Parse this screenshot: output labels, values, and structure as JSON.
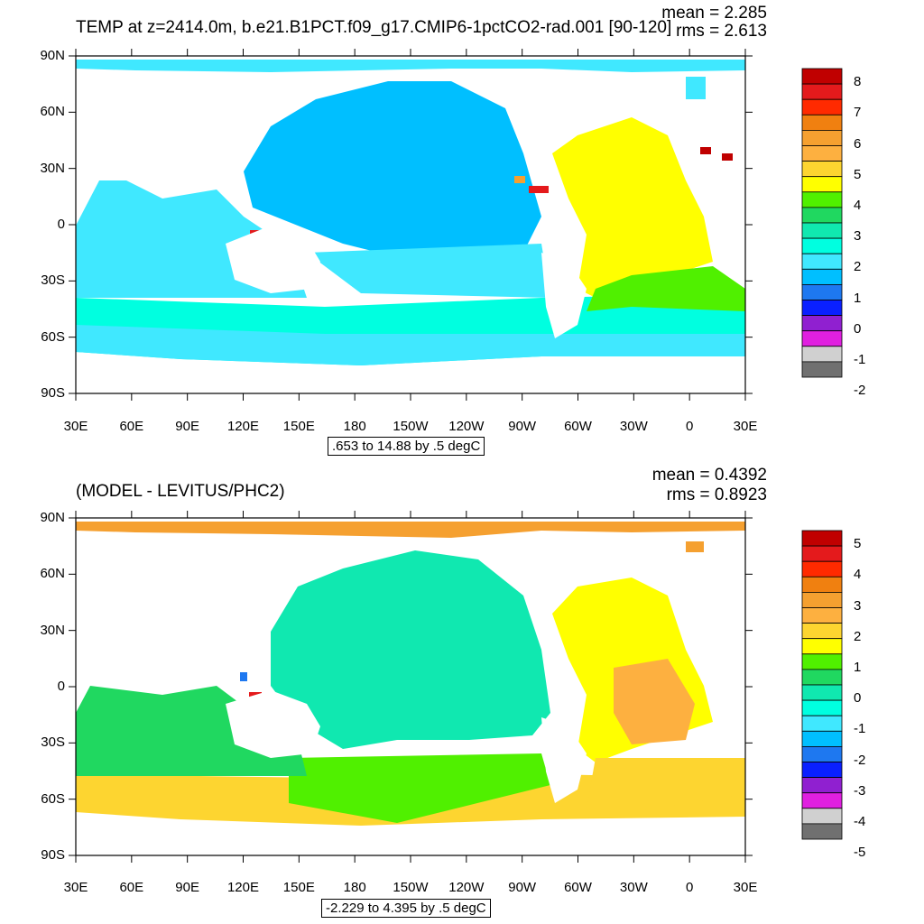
{
  "panels": [
    {
      "id": "top",
      "title": "TEMP at z=2414.0m, b.e21.B1PCT.f09_g17.CMIP6-1pctCO2-rad.001 [90-120]",
      "mean": "mean = 2.285",
      "rms": "rms = 2.613",
      "range_label": ".653 to 14.88 by .5 degC",
      "y_labels": [
        "90N",
        "60N",
        "30N",
        "0",
        "30S",
        "60S",
        "90S"
      ],
      "x_labels": [
        "30E",
        "60E",
        "90E",
        "120E",
        "150E",
        "180",
        "150W",
        "120W",
        "90W",
        "60W",
        "30W",
        "0",
        "30E"
      ],
      "legend_labels": [
        "8",
        "7",
        "6",
        "5",
        "4",
        "3",
        "2",
        "1",
        "0",
        "-1",
        "-2"
      ],
      "legend_colors": [
        "#c00000",
        "#e41a1c",
        "#ff2a00",
        "#f08010",
        "#f5a030",
        "#fdb040",
        "#fdd530",
        "#ffff00",
        "#50f000",
        "#20d860",
        "#10e8b0",
        "#00ffe0",
        "#40e8ff",
        "#00bfff",
        "#1e78f0",
        "#0a20ff",
        "#9020d0",
        "#e020e0",
        "#d0d0d0",
        "#707070"
      ]
    },
    {
      "id": "bottom",
      "title": "(MODEL - LEVITUS/PHC2)",
      "mean": "mean = 0.4392",
      "rms": "rms = 0.8923",
      "range_label": "-2.229 to 4.395 by .5 degC",
      "y_labels": [
        "90N",
        "60N",
        "30N",
        "0",
        "30S",
        "60S",
        "90S"
      ],
      "x_labels": [
        "30E",
        "60E",
        "90E",
        "120E",
        "150E",
        "180",
        "150W",
        "120W",
        "90W",
        "60W",
        "30W",
        "0",
        "30E"
      ],
      "legend_labels": [
        "5",
        "4",
        "3",
        "2",
        "1",
        "0",
        "-1",
        "-2",
        "-3",
        "-4",
        "-5"
      ],
      "legend_colors": [
        "#c00000",
        "#e41a1c",
        "#ff2a00",
        "#f08010",
        "#f5a030",
        "#fdb040",
        "#fdd530",
        "#ffff00",
        "#50f000",
        "#20d860",
        "#10e8b0",
        "#00ffe0",
        "#40e8ff",
        "#00bfff",
        "#1e78f0",
        "#0a20ff",
        "#9020d0",
        "#e020e0",
        "#d0d0d0",
        "#707070"
      ]
    }
  ]
}
